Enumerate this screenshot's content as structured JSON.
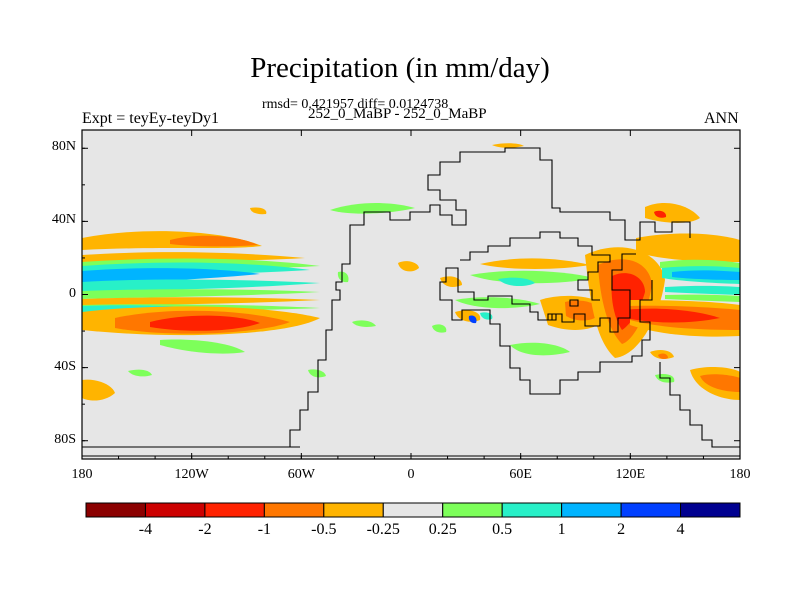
{
  "title": "Precipitation (in mm/day)",
  "stats_line": "rmsd= 0.421957 diff= 0.0124738",
  "case_line": "252_0_MaBP - 252_0_MaBP",
  "left_label": "Expt = teyEy-teyDy1",
  "right_label": "ANN",
  "chart_data": {
    "type": "heatmap",
    "projection": "cylindrical equidistant",
    "x_range": [
      -180,
      180
    ],
    "y_range": [
      -90,
      90
    ],
    "x_ticks": [
      {
        "value": -180,
        "label": "180"
      },
      {
        "value": -120,
        "label": "120W"
      },
      {
        "value": -60,
        "label": "60W"
      },
      {
        "value": 0,
        "label": "0"
      },
      {
        "value": 60,
        "label": "60E"
      },
      {
        "value": 120,
        "label": "120E"
      },
      {
        "value": 180,
        "label": "180"
      }
    ],
    "y_ticks": [
      {
        "value": 80,
        "label": "80N"
      },
      {
        "value": 40,
        "label": "40N"
      },
      {
        "value": 0,
        "label": "0"
      },
      {
        "value": -40,
        "label": "40S"
      },
      {
        "value": -80,
        "label": "80S"
      }
    ],
    "colorbar": {
      "levels": [
        "-4",
        "-2",
        "-1",
        "-0.5",
        "-0.25",
        "0.25",
        "0.5",
        "1",
        "2",
        "4"
      ],
      "colors": [
        "#8b0000",
        "#cc0000",
        "#ff2200",
        "#ff7700",
        "#ffb400",
        "#e6e6e6",
        "#7dff5a",
        "#28f0c8",
        "#00b4ff",
        "#0040ff",
        "#000090"
      ]
    },
    "features": [
      {
        "lon": [
          -180,
          -95
        ],
        "lat": [
          0,
          8
        ],
        "bin": 9,
        "note": "positive anomaly band north of equator, central/east Pacific"
      },
      {
        "lon": [
          -180,
          -70
        ],
        "lat": [
          -20,
          -10
        ],
        "bin": 3,
        "note": "negative anomaly band south of equator"
      },
      {
        "lon": [
          -160,
          -105
        ],
        "lat": [
          -25,
          -14
        ],
        "bin": 2,
        "note": "strongest negative core"
      },
      {
        "lon": [
          90,
          140
        ],
        "lat": [
          -20,
          15
        ],
        "bin": 2,
        "note": "negative anomalies over western Pacific / Tethys coast"
      },
      {
        "lon": [
          130,
          180
        ],
        "lat": [
          0,
          10
        ],
        "bin": 8,
        "note": "positive band west Pacific"
      },
      {
        "lon": [
          155,
          180
        ],
        "lat": [
          -50,
          -40
        ],
        "bin": 3,
        "note": "negative patch southern mid-latitudes"
      }
    ]
  }
}
